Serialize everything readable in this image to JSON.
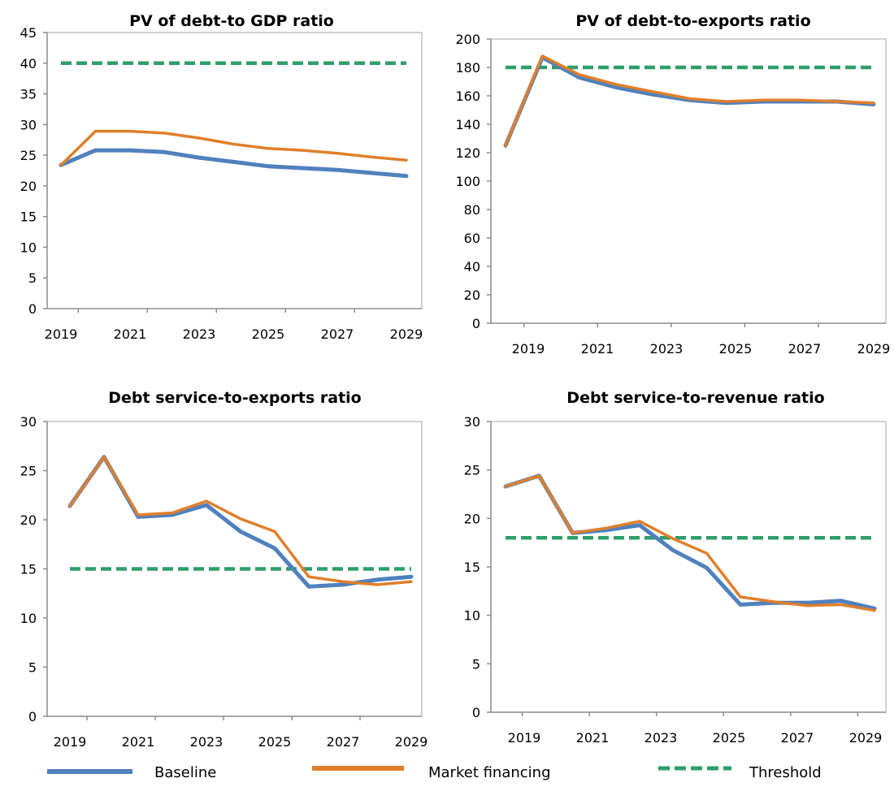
{
  "chart_data": [
    {
      "type": "line",
      "title": "PV of debt-to GDP ratio",
      "x": [
        2019,
        2020,
        2021,
        2022,
        2023,
        2024,
        2025,
        2026,
        2027,
        2028,
        2029
      ],
      "xticks": [
        "2019",
        "2021",
        "2023",
        "2025",
        "2027",
        "2029"
      ],
      "ylim": [
        0,
        45
      ],
      "yticks": [
        "0",
        "5",
        "10",
        "15",
        "20",
        "25",
        "30",
        "35",
        "40",
        "45"
      ],
      "grid": false,
      "series": [
        {
          "name": "Baseline",
          "values": [
            23.4,
            25.8,
            25.8,
            25.5,
            24.6,
            23.9,
            23.2,
            22.9,
            22.6,
            22.1,
            21.6
          ]
        },
        {
          "name": "Market financing",
          "values": [
            23.4,
            28.9,
            28.9,
            28.6,
            27.8,
            26.8,
            26.1,
            25.8,
            25.3,
            24.7,
            24.2
          ]
        },
        {
          "name": "Threshold",
          "values": [
            40,
            40,
            40,
            40,
            40,
            40,
            40,
            40,
            40,
            40,
            40
          ]
        }
      ]
    },
    {
      "type": "line",
      "title": "PV of debt-to-exports  ratio",
      "x": [
        2019,
        2020,
        2021,
        2022,
        2023,
        2024,
        2025,
        2026,
        2027,
        2028,
        2029
      ],
      "xticks": [
        "2019",
        "2021",
        "2023",
        "2025",
        "2027",
        "2029"
      ],
      "ylim": [
        0,
        200
      ],
      "yticks": [
        "0",
        "20",
        "40",
        "60",
        "80",
        "100",
        "120",
        "140",
        "160",
        "180",
        "200"
      ],
      "grid": false,
      "series": [
        {
          "name": "Baseline",
          "values": [
            125,
            187,
            173,
            166,
            161,
            157,
            155,
            156,
            156,
            156,
            154
          ]
        },
        {
          "name": "Market financing",
          "values": [
            125,
            188,
            175,
            168,
            163,
            158,
            156,
            157,
            157,
            156,
            155
          ]
        },
        {
          "name": "Threshold",
          "values": [
            180,
            180,
            180,
            180,
            180,
            180,
            180,
            180,
            180,
            180,
            180
          ]
        }
      ]
    },
    {
      "type": "line",
      "title": "Debt service-to-exports  ratio",
      "x": [
        2019,
        2020,
        2021,
        2022,
        2023,
        2024,
        2025,
        2026,
        2027,
        2028,
        2029
      ],
      "xticks": [
        "2019",
        "2021",
        "2023",
        "2025",
        "2027",
        "2029"
      ],
      "ylim": [
        0,
        30
      ],
      "yticks": [
        "0",
        "5",
        "10",
        "15",
        "20",
        "25",
        "30"
      ],
      "grid": false,
      "series": [
        {
          "name": "Baseline",
          "values": [
            21.4,
            26.4,
            20.3,
            20.5,
            21.5,
            18.8,
            17.1,
            13.2,
            13.4,
            13.9,
            14.2
          ]
        },
        {
          "name": "Market financing",
          "values": [
            21.4,
            26.4,
            20.5,
            20.7,
            21.9,
            20.1,
            18.8,
            14.2,
            13.7,
            13.4,
            13.7
          ]
        },
        {
          "name": "Threshold",
          "values": [
            15,
            15,
            15,
            15,
            15,
            15,
            15,
            15,
            15,
            15,
            15
          ]
        }
      ]
    },
    {
      "type": "line",
      "title": "Debt service-to-revenue  ratio",
      "x": [
        2019,
        2020,
        2021,
        2022,
        2023,
        2024,
        2025,
        2026,
        2027,
        2028,
        2029,
        2030
      ],
      "xticks": [
        "2019",
        "2021",
        "2023",
        "2025",
        "2027",
        "2029"
      ],
      "ylim": [
        0,
        30
      ],
      "yticks": [
        "0",
        "5",
        "10",
        "15",
        "20",
        "25",
        "30"
      ],
      "grid": false,
      "series": [
        {
          "name": "Baseline",
          "values": [
            23.3,
            24.4,
            18.5,
            18.8,
            19.3,
            16.7,
            14.9,
            11.1,
            11.3,
            11.3,
            11.5,
            10.7
          ]
        },
        {
          "name": "Market financing",
          "values": [
            23.3,
            24.4,
            18.5,
            19.0,
            19.7,
            17.9,
            16.4,
            11.9,
            11.4,
            11.0,
            11.1,
            10.5
          ]
        },
        {
          "name": "Threshold",
          "values": [
            18,
            18,
            18,
            18,
            18,
            18,
            18,
            18,
            18,
            18,
            18,
            18
          ]
        }
      ]
    }
  ],
  "legend": {
    "placement": "bottom",
    "items": [
      {
        "label": "Baseline",
        "color": "#4f81bd",
        "style": "solid"
      },
      {
        "label": "Market financing",
        "color": "#e07f2b",
        "style": "solid"
      },
      {
        "label": "Threshold",
        "color": "#2e9e6a",
        "style": "dashed"
      }
    ]
  },
  "colors": {
    "baseline": "#4f81bd",
    "market": "#e07f2b",
    "threshold": "#2e9e6a"
  }
}
